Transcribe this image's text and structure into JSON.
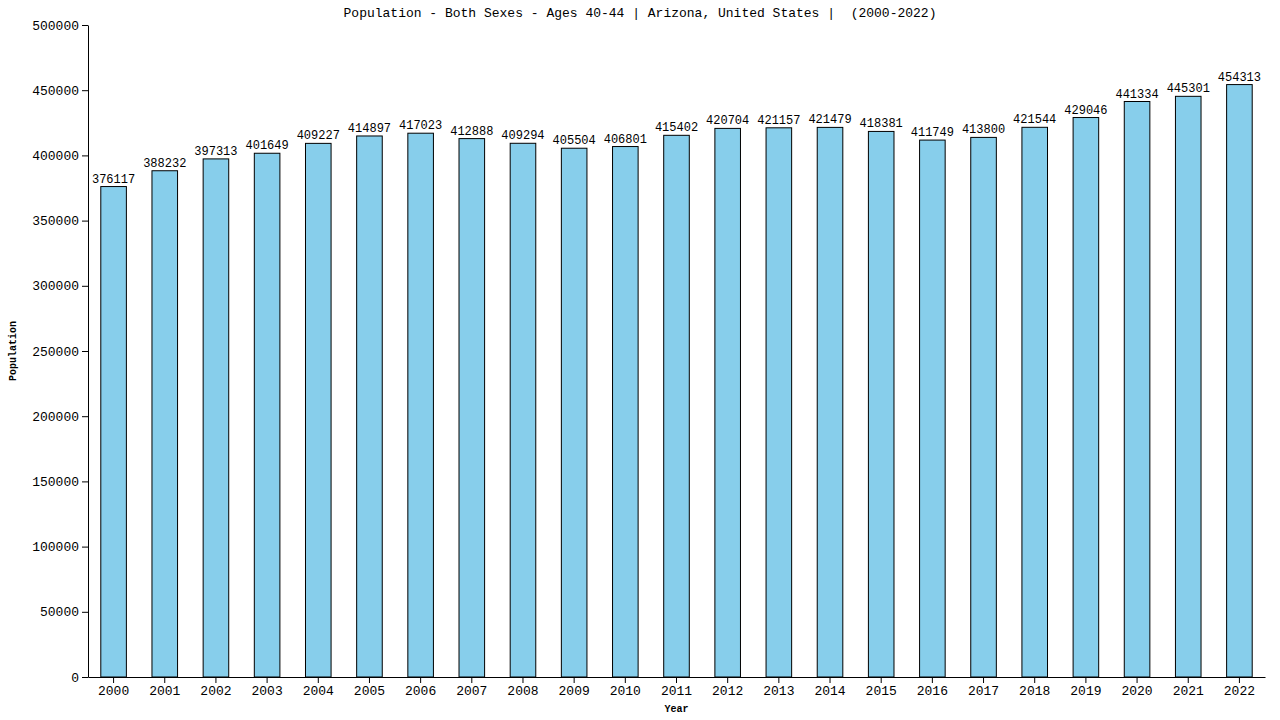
{
  "chart_data": {
    "type": "bar",
    "title": "Population - Both Sexes - Ages 40-44 | Arizona, United States |  (2000-2022)",
    "x_label": "Year",
    "y_label": "Population",
    "categories": [
      "2000",
      "2001",
      "2002",
      "2003",
      "2004",
      "2005",
      "2006",
      "2007",
      "2008",
      "2009",
      "2010",
      "2011",
      "2012",
      "2013",
      "2014",
      "2015",
      "2016",
      "2017",
      "2018",
      "2019",
      "2020",
      "2021",
      "2022"
    ],
    "values": [
      376117,
      388232,
      397313,
      401649,
      409227,
      414897,
      417023,
      412888,
      409294,
      405504,
      406801,
      415402,
      420704,
      421157,
      421479,
      418381,
      411749,
      413800,
      421544,
      429046,
      441334,
      445301,
      454313
    ],
    "color": "#87ceeb",
    "ylim": [
      0,
      500000
    ],
    "yticks": [
      0,
      50000,
      100000,
      150000,
      200000,
      250000,
      300000,
      350000,
      400000,
      450000,
      500000
    ],
    "grid": false,
    "data_labels": true
  }
}
